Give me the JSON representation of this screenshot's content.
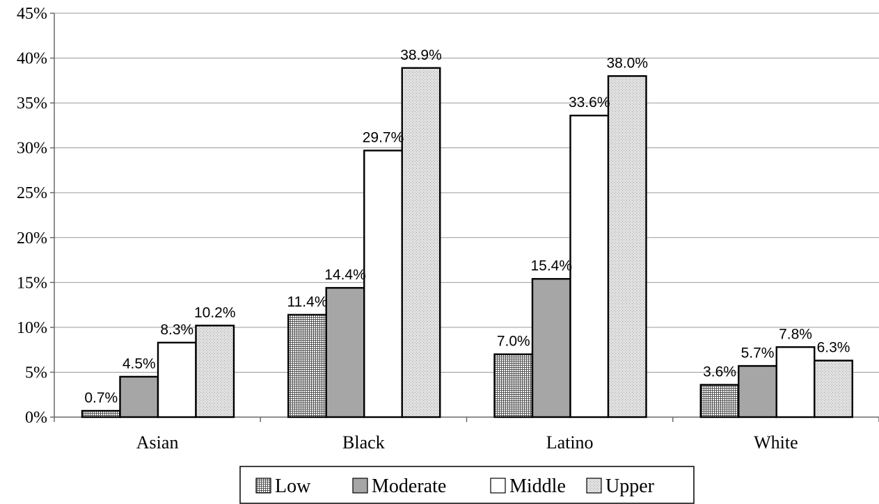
{
  "chart_data": {
    "type": "bar",
    "title": "",
    "xlabel": "",
    "ylabel": "",
    "categories": [
      "Asian",
      "Black",
      "Latino",
      "White"
    ],
    "y_ticks": [
      "0%",
      "5%",
      "10%",
      "15%",
      "20%",
      "25%",
      "30%",
      "35%",
      "40%",
      "45%"
    ],
    "ylim": [
      0,
      45
    ],
    "grid": true,
    "legend_position": "bottom",
    "series": [
      {
        "name": "Low",
        "fill": "pattern-grid",
        "values": [
          0.7,
          11.4,
          7.0,
          3.6
        ],
        "labels": [
          "0.7%",
          "11.4%",
          "7.0%",
          "3.6%"
        ]
      },
      {
        "name": "Moderate",
        "fill": "#a6a6a6",
        "values": [
          4.5,
          14.4,
          15.4,
          5.7
        ],
        "labels": [
          "4.5%",
          "14.4%",
          "15.4%",
          "5.7%"
        ]
      },
      {
        "name": "Middle",
        "fill": "#ffffff",
        "values": [
          8.3,
          29.7,
          33.6,
          7.8
        ],
        "labels": [
          "8.3%",
          "29.7%",
          "33.6%",
          "7.8%"
        ]
      },
      {
        "name": "Upper",
        "fill": "pattern-dots",
        "values": [
          10.2,
          38.9,
          38.0,
          6.3
        ],
        "labels": [
          "10.2%",
          "38.9%",
          "38.0%",
          "6.3%"
        ]
      }
    ]
  }
}
